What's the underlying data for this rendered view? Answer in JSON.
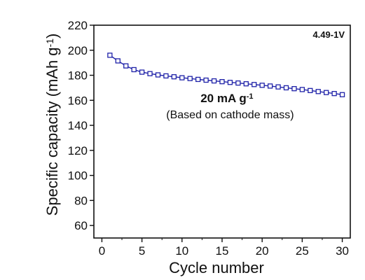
{
  "chart_data": {
    "type": "scatter",
    "title": "",
    "xlabel": "Cycle number",
    "ylabel": {
      "main": "Specific capacity (mAh g",
      "sup": "-1",
      "tail": ")"
    },
    "xlim": [
      -1,
      31
    ],
    "ylim": [
      50,
      220
    ],
    "xticks": [
      0,
      5,
      10,
      15,
      20,
      25,
      30
    ],
    "yticks": [
      60,
      80,
      100,
      120,
      140,
      160,
      180,
      200,
      220
    ],
    "grid": false,
    "series": [
      {
        "color": "#1f22a8",
        "marker": "open-square",
        "line": true,
        "x": [
          1,
          2,
          3,
          4,
          5,
          6,
          7,
          8,
          9,
          10,
          11,
          12,
          13,
          14,
          15,
          16,
          17,
          18,
          19,
          20,
          21,
          22,
          23,
          24,
          25,
          26,
          27,
          28,
          29,
          30
        ],
        "y": [
          196,
          191.5,
          187.5,
          184.5,
          182.5,
          181.3,
          180.3,
          179.5,
          178.8,
          178.0,
          177.4,
          176.7,
          176.1,
          175.5,
          174.9,
          174.3,
          173.8,
          173.2,
          172.6,
          172.0,
          171.4,
          170.7,
          170.0,
          169.3,
          168.6,
          167.8,
          167.0,
          166.2,
          165.4,
          164.5
        ]
      }
    ],
    "annotations": {
      "voltage": "4.49-1V",
      "rate": {
        "main": "20 mA g",
        "sup": "-1"
      },
      "basis": "(Based on cathode mass)"
    }
  }
}
